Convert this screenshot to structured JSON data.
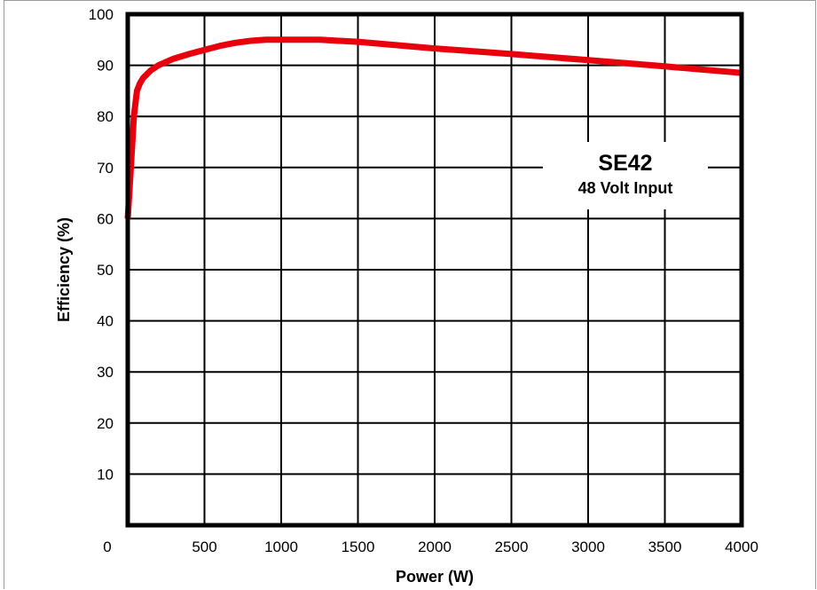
{
  "chart_data": {
    "type": "line",
    "title": "",
    "xlabel": "Power (W)",
    "ylabel": "Efficiency (%)",
    "xlim": [
      0,
      4000
    ],
    "ylim": [
      0,
      100
    ],
    "x_ticks": [
      0,
      500,
      1000,
      1500,
      2000,
      2500,
      3000,
      3500,
      4000
    ],
    "y_ticks": [
      10,
      20,
      30,
      40,
      50,
      60,
      70,
      80,
      90,
      100
    ],
    "x_tick_labels": [
      "0",
      "500",
      "1000",
      "1500",
      "2000",
      "2500",
      "3000",
      "3500",
      "4000"
    ],
    "y_tick_labels": [
      "10",
      "20",
      "30",
      "40",
      "50",
      "60",
      "70",
      "80",
      "90",
      "100"
    ],
    "grid": true,
    "annotation": {
      "title": "SE42",
      "subtitle": "48 Volt Input"
    },
    "series": [
      {
        "color": "#e8000c",
        "x": [
          0,
          20,
          40,
          60,
          80,
          100,
          150,
          200,
          300,
          400,
          500,
          600,
          700,
          800,
          900,
          1000,
          1250,
          1500,
          2000,
          2500,
          3000,
          3500,
          4000
        ],
        "y": [
          60,
          70,
          80,
          85,
          86.5,
          87.5,
          89,
          90,
          91.3,
          92.2,
          93,
          93.8,
          94.4,
          94.8,
          95,
          95,
          95,
          94.6,
          93.3,
          92.2,
          91,
          89.8,
          88.5
        ]
      }
    ]
  }
}
